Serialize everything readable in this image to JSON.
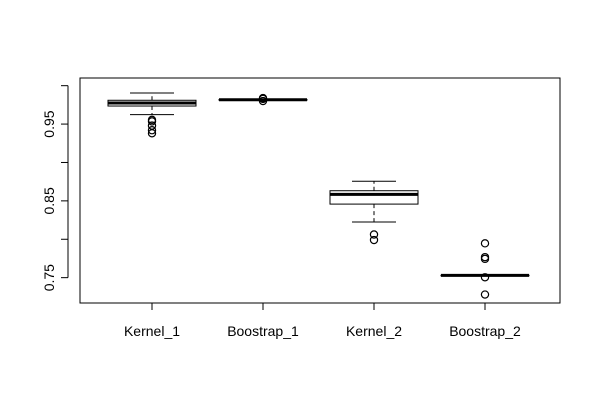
{
  "chart_data": {
    "type": "boxplot",
    "title": "",
    "xlabel": "",
    "ylabel": "",
    "categories": [
      "Kernel_1",
      "Boostrap_1",
      "Kernel_2",
      "Boostrap_2"
    ],
    "y_ticks": [
      0.75,
      0.85,
      0.95
    ],
    "y_tick_labels": [
      "0.75",
      "0.85",
      "0.95"
    ],
    "y_minor_ticks": [
      0.8,
      0.9,
      1.0
    ],
    "ylim": [
      0.717,
      1.01
    ],
    "grid": false,
    "legend": "none",
    "boxes": [
      {
        "name": "Kernel_1",
        "min": 0.9623,
        "q1": 0.9735,
        "median": 0.9775,
        "q3": 0.981,
        "max": 0.9905,
        "outliers": [
          0.9555,
          0.9535,
          0.948,
          0.942,
          0.938
        ]
      },
      {
        "name": "Boostrap_1",
        "min": 0.9812,
        "q1": 0.9815,
        "median": 0.9817,
        "q3": 0.9819,
        "max": 0.9822,
        "outliers": [
          0.9838,
          0.9828,
          0.98
        ]
      },
      {
        "name": "Kernel_2",
        "min": 0.8225,
        "q1": 0.8458,
        "median": 0.8585,
        "q3": 0.8632,
        "max": 0.8755,
        "outliers": [
          0.8062,
          0.799
        ]
      },
      {
        "name": "Boostrap_2",
        "min": 0.7524,
        "q1": 0.7527,
        "median": 0.7529,
        "q3": 0.7531,
        "max": 0.7534,
        "outliers": [
          0.7947,
          0.7767,
          0.7745,
          0.7505,
          0.728
        ]
      }
    ]
  }
}
